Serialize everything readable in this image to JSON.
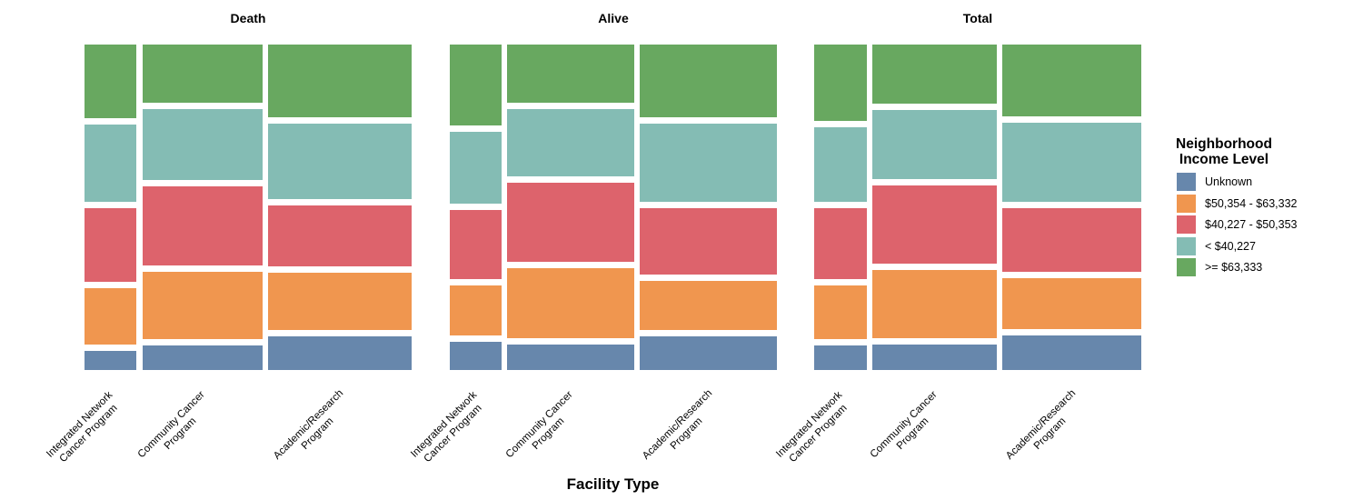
{
  "chart_data": {
    "type": "mosaic",
    "xlabel": "Facility Type",
    "categories": [
      "Integrated Network Cancer Program",
      "Community Cancer Program",
      "Academic/Research Program"
    ],
    "x_tick_labels": [
      [
        "Integrated Network",
        "Cancer Program"
      ],
      [
        "Community Cancer",
        "Program"
      ],
      [
        "Academic/Research",
        "Program"
      ]
    ],
    "stack_order_top_to_bottom": [
      ">= $63,333",
      "< $40,227",
      "$40,227 - $50,353",
      "$50,354 - $63,332",
      "Unknown"
    ],
    "colors": {
      "Unknown": "#6787ac",
      "$50,354 - $63,332": "#f0964f",
      "$40,227 - $50,353": "#dd636c",
      "< $40,227": "#84bcb4",
      ">= $63,333": "#68a860"
    },
    "facets": [
      {
        "title": "Death",
        "columns": [
          {
            "category": "Integrated Network Cancer Program",
            "width_frac": 0.165,
            "proportions": [
              0.246,
              0.258,
              0.243,
              0.188,
              0.064
            ]
          },
          {
            "category": "Community Cancer Program",
            "width_frac": 0.38,
            "proportions": [
              0.195,
              0.237,
              0.263,
              0.225,
              0.081
            ]
          },
          {
            "category": "Academic/Research Program",
            "width_frac": 0.455,
            "proportions": [
              0.241,
              0.253,
              0.202,
              0.193,
              0.111
            ]
          }
        ]
      },
      {
        "title": "Alive",
        "columns": [
          {
            "category": "Integrated Network Cancer Program",
            "width_frac": 0.164,
            "proportions": [
              0.269,
              0.239,
              0.232,
              0.165,
              0.095
            ]
          },
          {
            "category": "Community Cancer Program",
            "width_frac": 0.401,
            "proportions": [
              0.194,
              0.224,
              0.264,
              0.233,
              0.085
            ]
          },
          {
            "category": "Academic/Research Program",
            "width_frac": 0.435,
            "proportions": [
              0.242,
              0.263,
              0.221,
              0.163,
              0.112
            ]
          }
        ]
      },
      {
        "title": "Total",
        "columns": [
          {
            "category": "Integrated Network Cancer Program",
            "width_frac": 0.167,
            "proportions": [
              0.255,
              0.248,
              0.236,
              0.178,
              0.083
            ]
          },
          {
            "category": "Community Cancer Program",
            "width_frac": 0.394,
            "proportions": [
              0.198,
              0.228,
              0.261,
              0.228,
              0.085
            ]
          },
          {
            "category": "Academic/Research Program",
            "width_frac": 0.44,
            "proportions": [
              0.24,
              0.262,
              0.212,
              0.172,
              0.114
            ]
          }
        ]
      }
    ],
    "legend": {
      "title_lines": [
        "Neighborhood",
        "Income Level"
      ],
      "items": [
        {
          "label": "Unknown",
          "color": "#6787ac"
        },
        {
          "label": "$50,354 - $63,332",
          "color": "#f0964f"
        },
        {
          "label": "$40,227 - $50,353",
          "color": "#dd636c"
        },
        {
          "label": "< $40,227",
          "color": "#84bcb4"
        },
        {
          "label": ">= $63,333",
          "color": "#68a860"
        }
      ]
    }
  }
}
